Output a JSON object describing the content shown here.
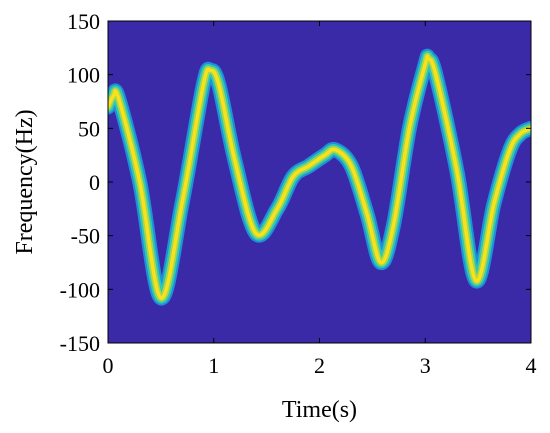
{
  "chart_data": {
    "type": "heatmap",
    "title": "",
    "xlabel": "Time(s)",
    "ylabel": "Frequency(Hz)",
    "xlim": [
      0,
      4
    ],
    "ylim": [
      -150,
      150
    ],
    "xticks": [
      0,
      1,
      2,
      3,
      4
    ],
    "yticks": [
      -150,
      -100,
      -50,
      0,
      50,
      100,
      150
    ],
    "grid": false,
    "background_color": "#3a2aa8",
    "colormap": [
      "#3a2aa8",
      "#1f8fd6",
      "#2fc8b6",
      "#a8d64a",
      "#f7e21e"
    ],
    "ridge": {
      "time": [
        0,
        0.05,
        0.1,
        0.3,
        0.5,
        0.7,
        0.9,
        0.97,
        1.05,
        1.2,
        1.4,
        1.6,
        1.75,
        1.9,
        2.05,
        2.15,
        2.3,
        2.45,
        2.58,
        2.7,
        2.85,
        3.0,
        3.03,
        3.1,
        3.3,
        3.48,
        3.65,
        3.8,
        3.9,
        4.0
      ],
      "frequency": [
        70,
        80,
        78,
        0,
        -108,
        -20,
        90,
        104,
        90,
        20,
        -48,
        -25,
        5,
        15,
        25,
        30,
        15,
        -30,
        -75,
        -40,
        50,
        110,
        115,
        100,
        10,
        -92,
        -20,
        30,
        45,
        50
      ]
    }
  }
}
